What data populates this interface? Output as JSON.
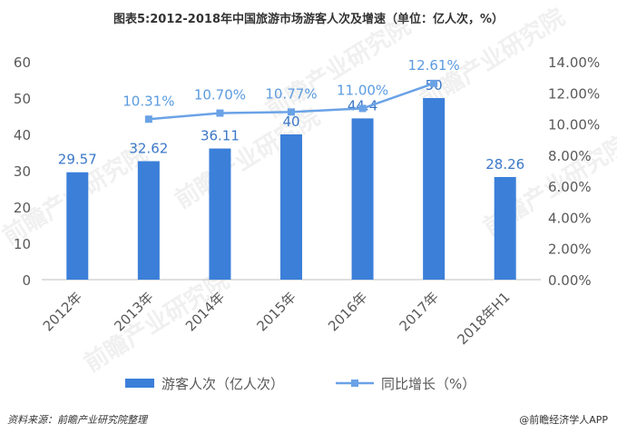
{
  "title": "图表5:2012-2018年中国旅游市场游客人次及增速（单位：亿人次，%）",
  "source": "资料来源：前瞻产业研究院整理",
  "brand": "@前瞻经济学人APP",
  "watermark": "前瞻产业研究院",
  "colors": {
    "bar": "#3b7fd9",
    "line": "#6aa2e6",
    "axis_text": "#595959",
    "grid": "#d9d9d9"
  },
  "chart_data": {
    "type": "bar+line",
    "categories": [
      "2012年",
      "2013年",
      "2014年",
      "2015年",
      "2016年",
      "2017年",
      "2018年H1"
    ],
    "bar_series": {
      "name": "游客人次（亿人次）",
      "values": [
        29.57,
        32.62,
        36.11,
        40,
        44.4,
        50,
        28.26
      ],
      "labels": [
        "29.57",
        "32.62",
        "36.11",
        "40",
        "44.4",
        "50",
        "28.26"
      ]
    },
    "line_series": {
      "name": "同比增长（%）",
      "values": [
        null,
        10.31,
        10.7,
        10.77,
        11.0,
        12.61,
        null
      ],
      "labels": [
        "",
        "10.31%",
        "10.70%",
        "10.77%",
        "11.00%",
        "12.61%",
        ""
      ]
    },
    "y_left": {
      "min": 0,
      "max": 60,
      "ticks": [
        "0",
        "10",
        "20",
        "30",
        "40",
        "50",
        "60"
      ]
    },
    "y_right": {
      "min": 0,
      "max": 14,
      "ticks": [
        "0.00%",
        "2.00%",
        "4.00%",
        "6.00%",
        "8.00%",
        "10.00%",
        "12.00%",
        "14.00%"
      ]
    },
    "grid": false,
    "legend_position": "bottom"
  }
}
